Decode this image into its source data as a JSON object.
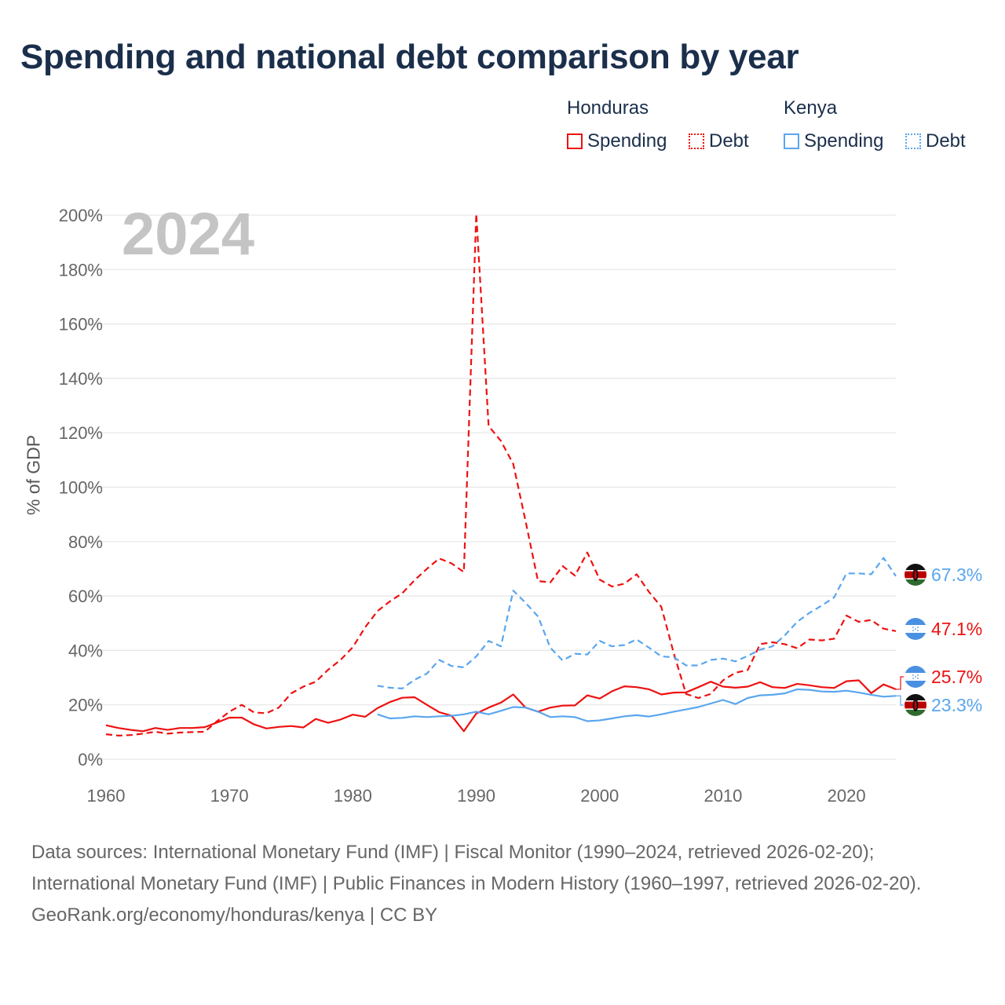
{
  "title": "Spending and national debt comparison by year",
  "year_label": "2024",
  "colors": {
    "honduras": "#ee1111",
    "kenya": "#5aa6ee",
    "grid": "#e6e6e6",
    "text": "#1b2f4b"
  },
  "legend": {
    "groups": [
      {
        "name": "Honduras",
        "items": [
          {
            "label": "Spending",
            "style": "solid"
          },
          {
            "label": "Debt",
            "style": "dotted"
          }
        ]
      },
      {
        "name": "Kenya",
        "items": [
          {
            "label": "Spending",
            "style": "solid"
          },
          {
            "label": "Debt",
            "style": "dotted"
          }
        ]
      }
    ]
  },
  "footer": {
    "sources": "Data sources: International Monetary Fund (IMF) | Fiscal Monitor (1990–2024, retrieved 2026-02-20); International Monetary Fund (IMF) | Public Finances in Modern History (1960–1997, retrieved 2026-02-20).",
    "credit": "GeoRank.org/economy/honduras/kenya | CC BY"
  },
  "chart_data": {
    "type": "line",
    "title": "Spending and national debt comparison by year",
    "xlabel": "",
    "ylabel": "% of GDP",
    "xlim": [
      1960,
      2024
    ],
    "ylim": [
      0,
      200
    ],
    "x_ticks": [
      1960,
      1970,
      1980,
      1990,
      2000,
      2010,
      2020
    ],
    "x_tick_labels": [
      "1960",
      "1970",
      "1980",
      "1990",
      "2000",
      "2010",
      "2020"
    ],
    "y_ticks": [
      0,
      20,
      40,
      60,
      80,
      100,
      120,
      140,
      160,
      180,
      200
    ],
    "y_tick_labels": [
      "0%",
      "20%",
      "40%",
      "60%",
      "80%",
      "100%",
      "120%",
      "140%",
      "160%",
      "180%",
      "200%"
    ],
    "grid": true,
    "series": [
      {
        "name": "Honduras Debt",
        "country": "Honduras",
        "metric": "Debt",
        "color": "#ee1111",
        "dash": "dashed",
        "end_label": "47.1%",
        "points": [
          [
            1960,
            9.2
          ],
          [
            1961,
            8.7
          ],
          [
            1962,
            8.9
          ],
          [
            1963,
            9.4
          ],
          [
            1964,
            10.1
          ],
          [
            1965,
            9.4
          ],
          [
            1966,
            9.8
          ],
          [
            1967,
            10.0
          ],
          [
            1968,
            10.1
          ],
          [
            1969,
            14.0
          ],
          [
            1970,
            17.5
          ],
          [
            1971,
            20.0
          ],
          [
            1972,
            17.2
          ],
          [
            1973,
            16.9
          ],
          [
            1974,
            19.0
          ],
          [
            1975,
            24.2
          ],
          [
            1976,
            26.7
          ],
          [
            1977,
            28.5
          ],
          [
            1978,
            32.9
          ],
          [
            1979,
            36.5
          ],
          [
            1980,
            41.2
          ],
          [
            1981,
            48.5
          ],
          [
            1982,
            54.5
          ],
          [
            1983,
            58.0
          ],
          [
            1984,
            61.0
          ],
          [
            1985,
            65.8
          ],
          [
            1986,
            70.0
          ],
          [
            1987,
            73.8
          ],
          [
            1988,
            72.0
          ],
          [
            1989,
            68.8
          ],
          [
            1990,
            200.5
          ],
          [
            1991,
            122.5
          ],
          [
            1992,
            117.0
          ],
          [
            1993,
            108.5
          ],
          [
            1994,
            87.5
          ],
          [
            1995,
            65.5
          ],
          [
            1996,
            65.0
          ],
          [
            1997,
            71.0
          ],
          [
            1998,
            67.5
          ],
          [
            1999,
            76.0
          ],
          [
            2000,
            66.0
          ],
          [
            2001,
            63.5
          ],
          [
            2002,
            64.5
          ],
          [
            2003,
            68.0
          ],
          [
            2004,
            61.5
          ],
          [
            2005,
            56.0
          ],
          [
            2006,
            39.0
          ],
          [
            2007,
            24.0
          ],
          [
            2008,
            22.5
          ],
          [
            2009,
            24.0
          ],
          [
            2010,
            29.0
          ],
          [
            2011,
            31.8
          ],
          [
            2012,
            32.8
          ],
          [
            2013,
            42.3
          ],
          [
            2014,
            43.0
          ],
          [
            2015,
            42.3
          ],
          [
            2016,
            40.8
          ],
          [
            2017,
            44.0
          ],
          [
            2018,
            43.7
          ],
          [
            2019,
            44.3
          ],
          [
            2020,
            52.8
          ],
          [
            2021,
            50.5
          ],
          [
            2022,
            51.2
          ],
          [
            2023,
            48.0
          ],
          [
            2024,
            47.1
          ]
        ]
      },
      {
        "name": "Kenya Debt",
        "country": "Kenya",
        "metric": "Debt",
        "color": "#5aa6ee",
        "dash": "dashed",
        "end_label": "67.3%",
        "points": [
          [
            1982,
            27.0
          ],
          [
            1983,
            26.3
          ],
          [
            1984,
            26.0
          ],
          [
            1985,
            29.2
          ],
          [
            1986,
            31.5
          ],
          [
            1987,
            36.5
          ],
          [
            1988,
            34.3
          ],
          [
            1989,
            33.8
          ],
          [
            1990,
            37.8
          ],
          [
            1991,
            43.5
          ],
          [
            1992,
            41.5
          ],
          [
            1993,
            62.0
          ],
          [
            1994,
            57.5
          ],
          [
            1995,
            52.5
          ],
          [
            1996,
            41.0
          ],
          [
            1997,
            36.3
          ],
          [
            1998,
            38.8
          ],
          [
            1999,
            38.5
          ],
          [
            2000,
            43.5
          ],
          [
            2001,
            41.5
          ],
          [
            2002,
            42.0
          ],
          [
            2003,
            44.0
          ],
          [
            2004,
            41.0
          ],
          [
            2005,
            37.8
          ],
          [
            2006,
            37.5
          ],
          [
            2007,
            34.5
          ],
          [
            2008,
            34.5
          ],
          [
            2009,
            36.5
          ],
          [
            2010,
            37.0
          ],
          [
            2011,
            36.0
          ],
          [
            2012,
            38.0
          ],
          [
            2013,
            40.3
          ],
          [
            2014,
            41.5
          ],
          [
            2015,
            45.5
          ],
          [
            2016,
            50.5
          ],
          [
            2017,
            53.8
          ],
          [
            2018,
            56.5
          ],
          [
            2019,
            59.5
          ],
          [
            2020,
            68.3
          ],
          [
            2021,
            68.3
          ],
          [
            2022,
            68.0
          ],
          [
            2023,
            74.0
          ],
          [
            2024,
            67.3
          ]
        ]
      },
      {
        "name": "Honduras Spending",
        "country": "Honduras",
        "metric": "Spending",
        "color": "#ee1111",
        "dash": "solid",
        "end_label": "25.7%",
        "points": [
          [
            1960,
            12.5
          ],
          [
            1961,
            11.5
          ],
          [
            1962,
            10.8
          ],
          [
            1963,
            10.3
          ],
          [
            1964,
            11.5
          ],
          [
            1965,
            10.8
          ],
          [
            1966,
            11.5
          ],
          [
            1967,
            11.5
          ],
          [
            1968,
            11.8
          ],
          [
            1969,
            13.5
          ],
          [
            1970,
            15.3
          ],
          [
            1971,
            15.3
          ],
          [
            1972,
            12.8
          ],
          [
            1973,
            11.3
          ],
          [
            1974,
            11.9
          ],
          [
            1975,
            12.2
          ],
          [
            1976,
            11.7
          ],
          [
            1977,
            14.8
          ],
          [
            1978,
            13.4
          ],
          [
            1979,
            14.6
          ],
          [
            1980,
            16.4
          ],
          [
            1981,
            15.6
          ],
          [
            1982,
            18.8
          ],
          [
            1983,
            21.0
          ],
          [
            1984,
            22.6
          ],
          [
            1985,
            22.8
          ],
          [
            1986,
            20.0
          ],
          [
            1987,
            17.3
          ],
          [
            1988,
            16.0
          ],
          [
            1989,
            10.3
          ],
          [
            1990,
            16.8
          ],
          [
            1991,
            19.0
          ],
          [
            1992,
            20.8
          ],
          [
            1993,
            23.8
          ],
          [
            1994,
            19.0
          ],
          [
            1995,
            17.5
          ],
          [
            1996,
            19.0
          ],
          [
            1997,
            19.7
          ],
          [
            1998,
            19.8
          ],
          [
            1999,
            23.5
          ],
          [
            2000,
            22.3
          ],
          [
            2001,
            25.0
          ],
          [
            2002,
            26.8
          ],
          [
            2003,
            26.5
          ],
          [
            2004,
            25.7
          ],
          [
            2005,
            23.8
          ],
          [
            2006,
            24.5
          ],
          [
            2007,
            24.6
          ],
          [
            2008,
            26.5
          ],
          [
            2009,
            28.5
          ],
          [
            2010,
            26.7
          ],
          [
            2011,
            26.3
          ],
          [
            2012,
            26.7
          ],
          [
            2013,
            28.3
          ],
          [
            2014,
            26.5
          ],
          [
            2015,
            26.2
          ],
          [
            2016,
            27.7
          ],
          [
            2017,
            27.2
          ],
          [
            2018,
            26.5
          ],
          [
            2019,
            26.2
          ],
          [
            2020,
            28.7
          ],
          [
            2021,
            29.0
          ],
          [
            2022,
            24.3
          ],
          [
            2023,
            27.5
          ],
          [
            2024,
            25.7
          ]
        ]
      },
      {
        "name": "Kenya Spending",
        "country": "Kenya",
        "metric": "Spending",
        "color": "#5aa6ee",
        "dash": "solid",
        "end_label": "23.3%",
        "points": [
          [
            1982,
            16.5
          ],
          [
            1983,
            15.0
          ],
          [
            1984,
            15.2
          ],
          [
            1985,
            15.8
          ],
          [
            1986,
            15.5
          ],
          [
            1987,
            15.8
          ],
          [
            1988,
            16.0
          ],
          [
            1989,
            16.5
          ],
          [
            1990,
            17.5
          ],
          [
            1991,
            16.5
          ],
          [
            1992,
            17.8
          ],
          [
            1993,
            19.2
          ],
          [
            1994,
            19.0
          ],
          [
            1995,
            17.5
          ],
          [
            1996,
            15.5
          ],
          [
            1997,
            15.8
          ],
          [
            1998,
            15.5
          ],
          [
            1999,
            14.0
          ],
          [
            2000,
            14.3
          ],
          [
            2001,
            15.0
          ],
          [
            2002,
            15.8
          ],
          [
            2003,
            16.2
          ],
          [
            2004,
            15.7
          ],
          [
            2005,
            16.5
          ],
          [
            2006,
            17.5
          ],
          [
            2007,
            18.3
          ],
          [
            2008,
            19.2
          ],
          [
            2009,
            20.5
          ],
          [
            2010,
            21.8
          ],
          [
            2011,
            20.3
          ],
          [
            2012,
            22.5
          ],
          [
            2013,
            23.5
          ],
          [
            2014,
            23.7
          ],
          [
            2015,
            24.2
          ],
          [
            2016,
            25.7
          ],
          [
            2017,
            25.5
          ],
          [
            2018,
            24.9
          ],
          [
            2019,
            24.8
          ],
          [
            2020,
            25.2
          ],
          [
            2021,
            24.5
          ],
          [
            2022,
            23.7
          ],
          [
            2023,
            23.0
          ],
          [
            2024,
            23.3
          ]
        ]
      }
    ]
  }
}
